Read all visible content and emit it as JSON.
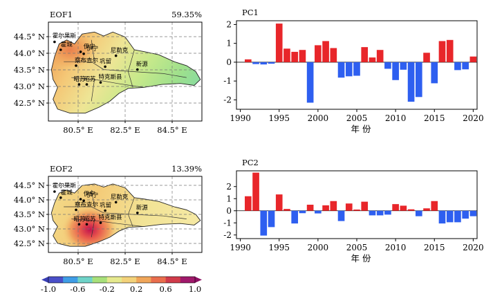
{
  "maps": [
    {
      "label": "EOF1",
      "percent": "59.35%",
      "lat_ticks": [
        "44.5° N",
        "44.0° N",
        "43.5° N",
        "43.0° N",
        "42.5° N"
      ],
      "lon_ticks": [
        "80.5° E",
        "82.5° E",
        "84.5° E"
      ],
      "stations": [
        {
          "name": "霍尔果斯"
        },
        {
          "name": "霍城"
        },
        {
          "name": "伊宁"
        },
        {
          "name": "伊宁"
        },
        {
          "name": "察布查尔"
        },
        {
          "name": "尼勒克"
        },
        {
          "name": "巩留"
        },
        {
          "name": "新源"
        },
        {
          "name": "昭苏"
        },
        {
          "name": "昭苏"
        },
        {
          "name": "特克斯县"
        }
      ]
    },
    {
      "label": "EOF2",
      "percent": "13.39%",
      "lat_ticks": [
        "44.5° N",
        "44.0° N",
        "43.5° N",
        "43.0° N",
        "42.5° N"
      ],
      "lon_ticks": [
        "80.5° E",
        "82.5° E",
        "84.5° E"
      ],
      "stations": [
        {
          "name": "霍尔果斯"
        },
        {
          "name": "霍城"
        },
        {
          "name": "伊宁"
        },
        {
          "name": "伊宁"
        },
        {
          "name": "察布查尔"
        },
        {
          "name": "尼勒克"
        },
        {
          "name": "巩留"
        },
        {
          "name": "新源"
        },
        {
          "name": "昭苏"
        },
        {
          "name": "昭苏"
        },
        {
          "name": "特克斯县"
        }
      ]
    }
  ],
  "colorbar": {
    "ticks": [
      "-1.0",
      "-0.6",
      "-0.2",
      "0.2",
      "0.6",
      "1.0"
    ],
    "colors": [
      "#4a4fc8",
      "#3f9de6",
      "#6fd3c8",
      "#a8e07a",
      "#e6e98e",
      "#f3d27a",
      "#f0a65a",
      "#e96e4d",
      "#d03b4a",
      "#a0196b"
    ]
  },
  "chart_data": [
    {
      "type": "bar",
      "title": "PC1",
      "xlabel": "年 份",
      "ylabel": "",
      "xlim": [
        1990,
        2020
      ],
      "ylim": [
        -2.5,
        2.2
      ],
      "xticks": [
        1990,
        1995,
        2000,
        2005,
        2010,
        2015,
        2020
      ],
      "yticks": [
        2,
        1,
        0,
        -1,
        -2
      ],
      "positive_color": "#e8262a",
      "negative_color": "#2e5ff0",
      "x": [
        1991,
        1992,
        1993,
        1994,
        1995,
        1996,
        1997,
        1998,
        1999,
        2000,
        2001,
        2002,
        2003,
        2004,
        2005,
        2006,
        2007,
        2008,
        2009,
        2010,
        2011,
        2012,
        2013,
        2014,
        2015,
        2016,
        2017,
        2018,
        2019,
        2020
      ],
      "values": [
        0.15,
        -0.1,
        -0.12,
        -0.08,
        2.05,
        0.72,
        0.55,
        0.65,
        -2.15,
        0.9,
        1.12,
        0.75,
        -0.82,
        -0.75,
        -0.72,
        0.8,
        0.25,
        0.65,
        -0.35,
        -0.95,
        -0.4,
        -2.1,
        -1.85,
        0.5,
        -1.12,
        1.12,
        1.18,
        -0.42,
        -0.38,
        0.3
      ]
    },
    {
      "type": "bar",
      "title": "PC2",
      "xlabel": "年 份",
      "ylabel": "",
      "xlim": [
        1990,
        2020
      ],
      "ylim": [
        -2.3,
        3.3
      ],
      "xticks": [
        1990,
        1995,
        2000,
        2005,
        2010,
        2015,
        2020
      ],
      "yticks": [
        2,
        1,
        0,
        -1,
        -2
      ],
      "positive_color": "#e8262a",
      "negative_color": "#2e5ff0",
      "x": [
        1991,
        1992,
        1993,
        1994,
        1995,
        1996,
        1997,
        1998,
        1999,
        2000,
        2001,
        2002,
        2003,
        2004,
        2005,
        2006,
        2007,
        2008,
        2009,
        2010,
        2011,
        2012,
        2013,
        2014,
        2015,
        2016,
        2017,
        2018,
        2019,
        2020
      ],
      "values": [
        1.2,
        3.15,
        -2.05,
        -1.35,
        1.35,
        0.15,
        -1.05,
        -0.2,
        0.5,
        -0.22,
        0.45,
        0.8,
        -0.85,
        0.6,
        0.1,
        0.75,
        -0.38,
        -0.38,
        -0.32,
        0.55,
        0.42,
        0.12,
        -0.45,
        0.2,
        0.8,
        -1.05,
        -0.95,
        -0.95,
        -0.65,
        -0.45
      ]
    }
  ]
}
